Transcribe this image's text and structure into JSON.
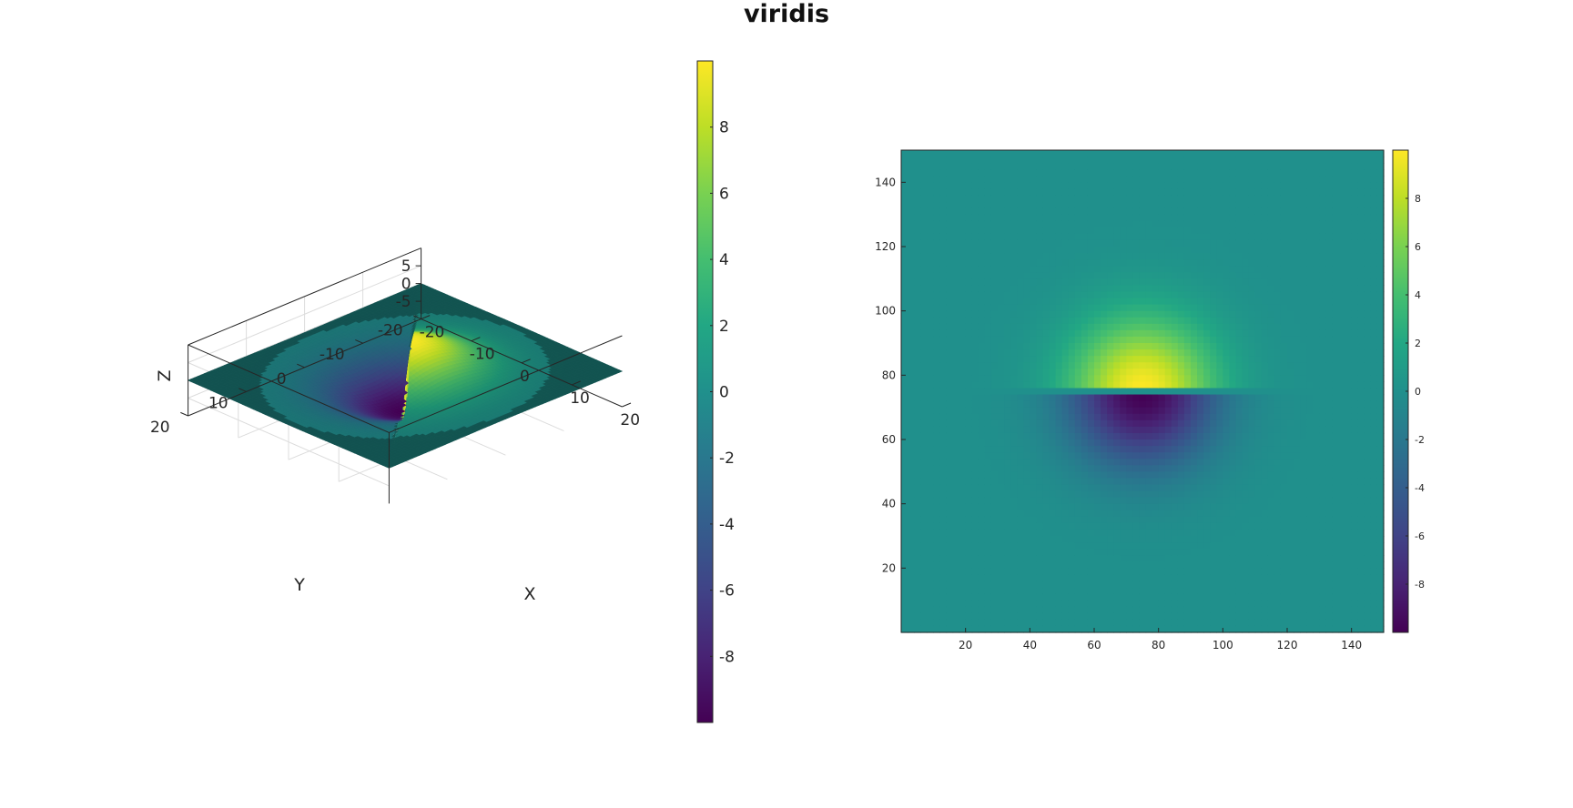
{
  "figure": {
    "title": "viridis",
    "colormap": "viridis"
  },
  "chart_data": [
    {
      "type": "surface",
      "function": "z = 10 * exp(-(x^2 + y^2) / 100) * sign(x - y)",
      "xlabel": "X",
      "ylabel": "Y",
      "zlabel": "Z",
      "xlim": [
        -20,
        20
      ],
      "ylim": [
        -20,
        20
      ],
      "zlim": [
        -10,
        10
      ],
      "xticks": [
        "-20",
        "-10",
        "0",
        "10",
        "20"
      ],
      "yticks": [
        "-20",
        "-10",
        "0",
        "10",
        "20"
      ],
      "zticks": [
        "-5",
        "0",
        "5"
      ],
      "grid": true,
      "colorbar": {
        "range": [
          -10,
          10
        ],
        "ticks": [
          "-8",
          "-6",
          "-4",
          "-2",
          "0",
          "2",
          "4",
          "6",
          "8"
        ]
      }
    },
    {
      "type": "heatmap",
      "function": "10 * exp(-((col - 75)^2 + (row - 75)^2) / 500) * sign(row - 75)",
      "xlim": [
        0,
        150
      ],
      "ylim": [
        0,
        150
      ],
      "xticks": [
        "20",
        "40",
        "60",
        "80",
        "100",
        "120",
        "140"
      ],
      "yticks": [
        "20",
        "40",
        "60",
        "80",
        "100",
        "120",
        "140"
      ],
      "grid": false,
      "colorbar": {
        "range": [
          -10,
          10
        ],
        "ticks": [
          "-8",
          "-6",
          "-4",
          "-2",
          "0",
          "2",
          "4",
          "6",
          "8"
        ]
      }
    }
  ]
}
